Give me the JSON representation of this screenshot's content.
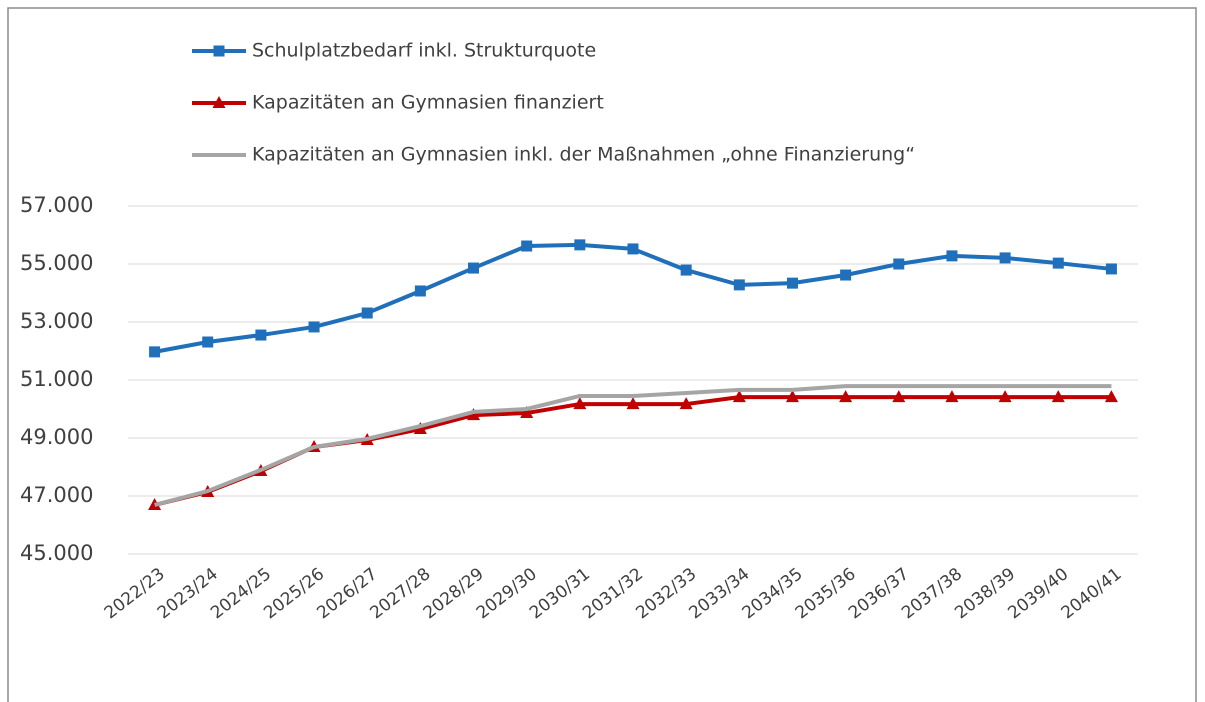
{
  "chart_data": {
    "type": "line",
    "categories": [
      "2022/23",
      "2023/24",
      "2024/25",
      "2025/26",
      "2026/27",
      "2027/28",
      "2028/29",
      "2029/30",
      "2030/31",
      "2031/32",
      "2032/33",
      "2033/34",
      "2034/35",
      "2035/36",
      "2036/37",
      "2037/38",
      "2038/39",
      "2039/40",
      "2040/41"
    ],
    "series": [
      {
        "name": "Schulplatzbedarf inkl. Strukturquote",
        "color": "#1f6fba",
        "marker": "square",
        "values": [
          51970,
          52310,
          52550,
          52830,
          53310,
          54070,
          54860,
          55620,
          55660,
          55520,
          54790,
          54280,
          54340,
          54620,
          55000,
          55280,
          55210,
          55030,
          54830
        ]
      },
      {
        "name": "Kapazitäten an Gymnasien finanziert",
        "color": "#c00000",
        "marker": "triangle",
        "values": [
          46690,
          47140,
          47860,
          48690,
          48930,
          49310,
          49790,
          49860,
          50170,
          50170,
          50170,
          50410,
          50410,
          50410,
          50410,
          50410,
          50410,
          50410,
          50410
        ]
      },
      {
        "name": "Kapazitäten an Gymnasien inkl. der Maßnahmen „ohne Finanzierung“",
        "color": "#a5a5a5",
        "marker": "none",
        "values": [
          46690,
          47170,
          47900,
          48690,
          48970,
          49410,
          49900,
          50000,
          50450,
          50450,
          50550,
          50660,
          50660,
          50790,
          50790,
          50790,
          50790,
          50790,
          50790
        ]
      }
    ],
    "ylim": [
      45000,
      57000
    ],
    "yticks": [
      {
        "value": 45000,
        "label": "45.000"
      },
      {
        "value": 47000,
        "label": "47.000"
      },
      {
        "value": 49000,
        "label": "49.000"
      },
      {
        "value": 51000,
        "label": "51.000"
      },
      {
        "value": 53000,
        "label": "53.000"
      },
      {
        "value": 55000,
        "label": "55.000"
      },
      {
        "value": 57000,
        "label": "57.000"
      }
    ],
    "grid": true,
    "legend": "top"
  }
}
